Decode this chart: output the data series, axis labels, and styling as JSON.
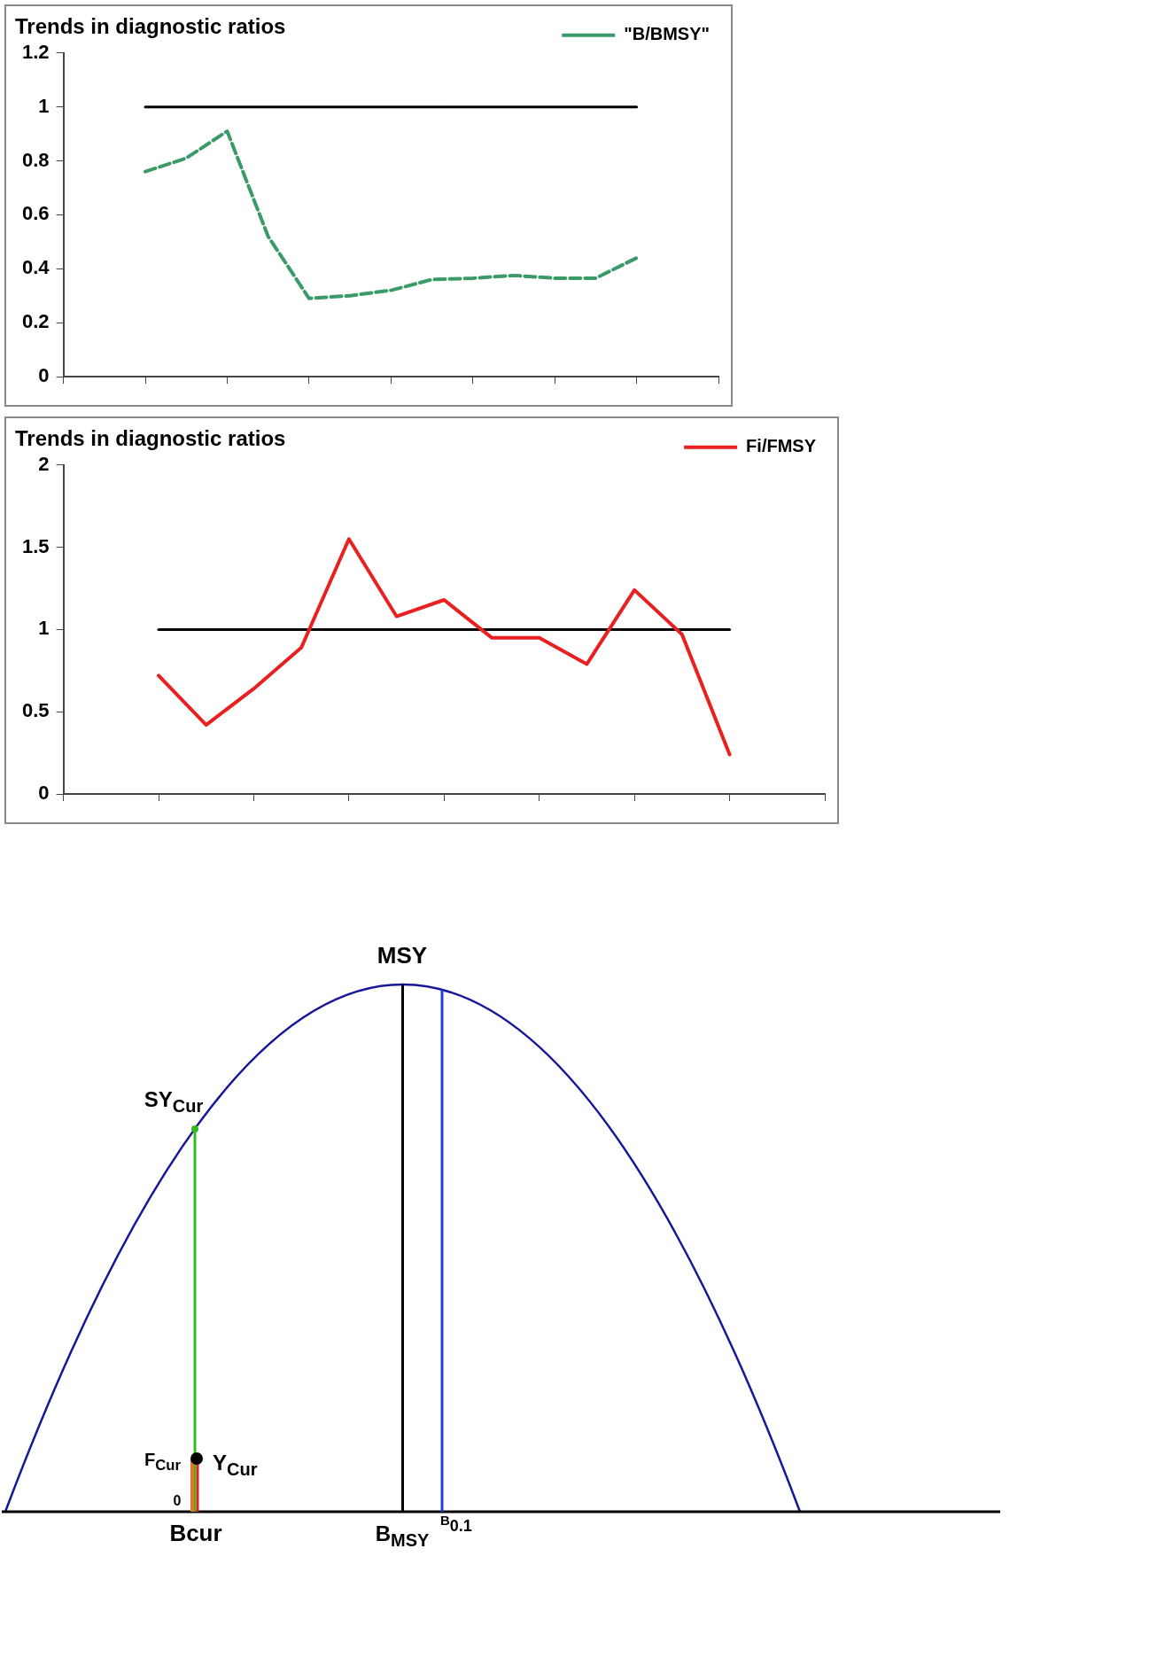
{
  "chart_data": [
    {
      "type": "line",
      "title": "Trends in diagnostic ratios",
      "categories": [
        null,
        null,
        null,
        null,
        null,
        null,
        null,
        null,
        null,
        null,
        null,
        null,
        null
      ],
      "series": [
        {
          "name": "\"B/BMSY\"",
          "color": "#3a9a68",
          "line_style": "dashed",
          "values": [
            0.76,
            0.81,
            0.91,
            0.52,
            0.29,
            0.3,
            0.32,
            0.36,
            0.365,
            0.375,
            0.365,
            0.365,
            0.44
          ]
        },
        {
          "color": "#000000",
          "line_style": "solid",
          "values": [
            1,
            1,
            1,
            1,
            1,
            1,
            1,
            1,
            1,
            1,
            1,
            1,
            1
          ]
        }
      ],
      "ylim": [
        0,
        1.2
      ],
      "yticks": [
        0,
        0.2,
        0.4,
        0.6,
        0.8,
        1,
        1.2
      ],
      "legend": "top right",
      "grid": false,
      "tick_labels": "y",
      "marker": "none"
    },
    {
      "type": "line",
      "title": "Trends in diagnostic ratios",
      "categories": [
        null,
        null,
        null,
        null,
        null,
        null,
        null,
        null,
        null,
        null,
        null,
        null,
        null
      ],
      "series": [
        {
          "name": "Fi/FMSY",
          "color": "#e82020",
          "line_style": "solid",
          "values": [
            0.72,
            0.42,
            0.64,
            0.89,
            1.55,
            1.08,
            1.18,
            0.95,
            0.95,
            0.79,
            1.24,
            0.97,
            0.24
          ]
        },
        {
          "color": "#000000",
          "line_style": "solid",
          "values": [
            1,
            1,
            1,
            1,
            1,
            1,
            1,
            1,
            1,
            1,
            1,
            1,
            1
          ]
        }
      ],
      "ylim": [
        0,
        2
      ],
      "yticks": [
        0,
        0.5,
        1,
        1.5,
        2
      ],
      "legend": "top right",
      "grid": false,
      "tick_labels": "y",
      "marker": "none"
    },
    {
      "type": "other",
      "annotations": [
        "MSY",
        "SY$_{Cur}$",
        "F$_{Cur}$",
        "Y$_{Cur}$",
        "0",
        "Bcur",
        "B$_{MSY}$",
        "$^{B}$0.1"
      ]
    }
  ]
}
